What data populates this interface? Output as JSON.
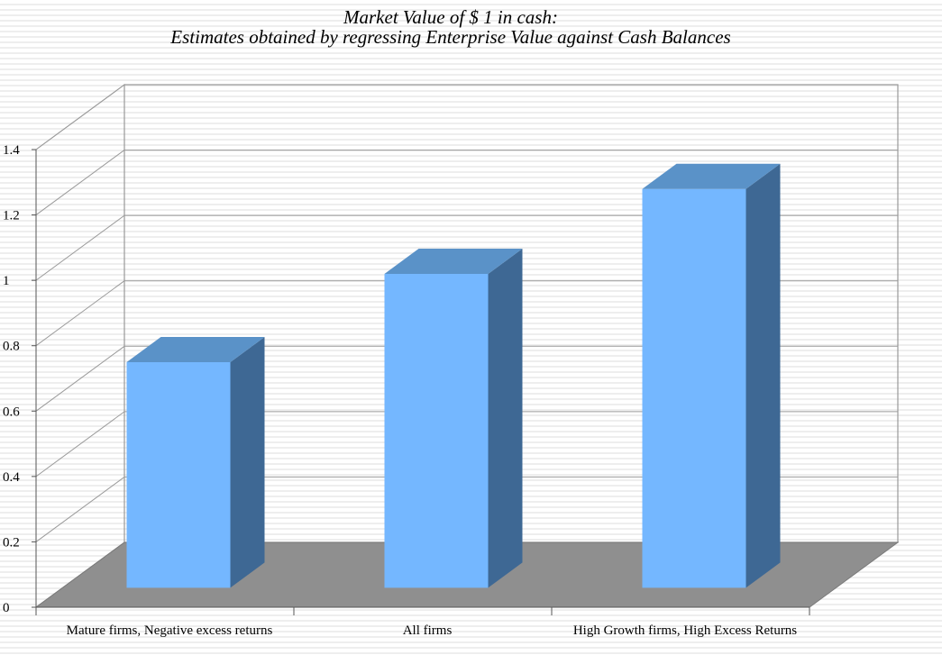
{
  "chart_data": {
    "type": "bar",
    "title": "Market Value of $ 1 in cash:",
    "subtitle": "Estimates obtained by regressing Enterprise Value against Cash Balances",
    "categories": [
      "Mature firms, Negative excess returns",
      "All firms",
      "High Growth firms, High Excess Returns"
    ],
    "values": [
      0.69,
      0.96,
      1.22
    ],
    "ylim": [
      0,
      1.4
    ],
    "yticks": [
      0,
      0.2,
      0.4,
      0.6,
      0.8,
      1,
      1.2,
      1.4
    ],
    "ytick_labels": [
      "0",
      "0.2",
      "0.4",
      "0.6",
      "0.8",
      "1",
      "1.2",
      "1.4"
    ],
    "xlabel": "",
    "ylabel": "",
    "grid": true,
    "legend": "none",
    "three_d": true,
    "colors": {
      "bar_front": "#74b7ff",
      "bar_top": "#5a92c8",
      "bar_side": "#3e6894",
      "floor": "#8f8f8f",
      "gridline": "#9a9a9a"
    }
  }
}
